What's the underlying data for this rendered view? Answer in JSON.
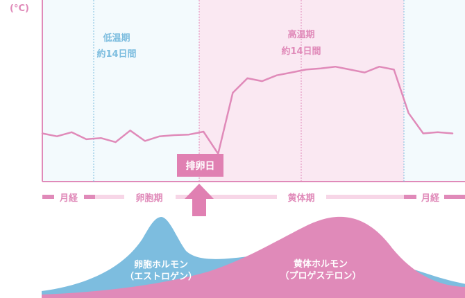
{
  "unit_label": "(°C)",
  "chart_data": {
    "type": "line",
    "unit": "(°C)",
    "x": [
      1,
      2,
      3,
      4,
      5,
      6,
      7,
      8,
      9,
      10,
      11,
      12,
      13,
      14,
      15,
      16,
      17,
      18,
      19,
      20,
      21,
      22,
      23,
      24,
      25,
      26,
      27,
      28,
      29
    ],
    "series": [
      {
        "values": [
          36.2,
          36.15,
          36.22,
          36.1,
          36.12,
          36.05,
          36.25,
          36.07,
          36.15,
          36.17,
          36.18,
          36.23,
          35.85,
          36.9,
          37.15,
          37.1,
          37.2,
          37.25,
          37.3,
          37.32,
          37.35,
          37.3,
          37.25,
          37.35,
          37.3,
          36.55,
          36.2,
          36.22,
          36.2
        ]
      }
    ],
    "color": "#e08ab9",
    "phases": {
      "low": {
        "name": "低温期",
        "duration": "約14日間"
      },
      "high": {
        "name": "高温期",
        "duration": "約14日間"
      }
    },
    "ovulation_label": "排卵日",
    "cycle_bands": [
      "月経",
      "卵胞期",
      "黄体期",
      "月経"
    ],
    "hormones": [
      {
        "name": "卵胞ホルモン",
        "sub": "（エストロゲン）",
        "color": "#7dbddf"
      },
      {
        "name": "黄体ホルモン",
        "sub": "（プロゲステロン）",
        "color": "#e08ab9"
      }
    ]
  }
}
